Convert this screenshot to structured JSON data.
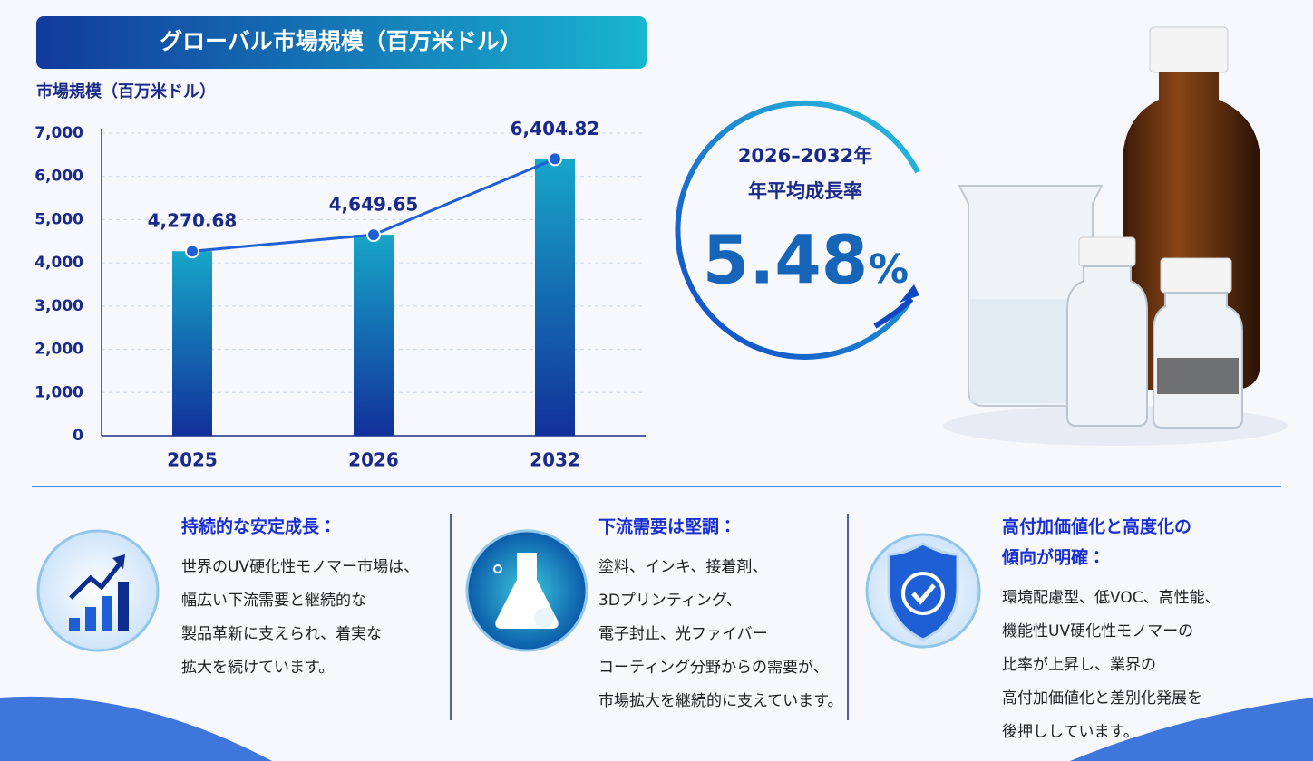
{
  "chart_data": {
    "type": "bar",
    "title": "グローバル市場規模（百万米ドル）",
    "y_label": "市場規模（百万米ドル）",
    "categories": [
      "2025",
      "2026",
      "2032"
    ],
    "values": [
      4270.68,
      4649.65,
      6404.82
    ],
    "value_labels": [
      "4,270.68",
      "4,649.65",
      "6,404.82"
    ],
    "color": "#1668b8",
    "line_color": "#1f5fd6",
    "ylim": [
      0,
      7000
    ],
    "yticks": [
      0,
      {
        "value": 1000,
        "label": "1,000"
      },
      {
        "value": 2000,
        "label": "2,000"
      },
      {
        "value": 3000,
        "label": "3,000"
      },
      {
        "value": 4000,
        "label": "4,000"
      },
      {
        "value": 5000,
        "label": "5,000"
      },
      {
        "value": 6000,
        "label": "6,000"
      },
      {
        "value": 7000,
        "label": "7,000"
      }
    ],
    "grid": true
  },
  "cagr": {
    "period": "2026–2032年",
    "label": "年平均成長率",
    "value": "5.48",
    "unit": "%"
  },
  "cards": [
    {
      "title": [
        "持続的な安定成長："
      ],
      "body": [
        "世界のUV硬化性モノマー市場は、",
        "幅広い下流需要と継続的な",
        "製品革新に支えられ、着実な",
        "拡大を続けています。"
      ]
    },
    {
      "title": [
        "下流需要は堅調："
      ],
      "body": [
        "塗料、インキ、接着剤、",
        "3Dプリンティング、",
        "電子封止、光ファイバー",
        "コーティング分野からの需要が、",
        "市場拡大を継続的に支えています。"
      ]
    },
    {
      "title": [
        "高付加価値化と高度化の",
        "傾向が明確："
      ],
      "body": [
        "環境配慮型、低VOC、高性能、",
        "機能性UV硬化性モノマーの",
        "比率が上昇し、業界の",
        "高付加価値化と差別化発展を",
        "後押ししています。"
      ]
    }
  ]
}
